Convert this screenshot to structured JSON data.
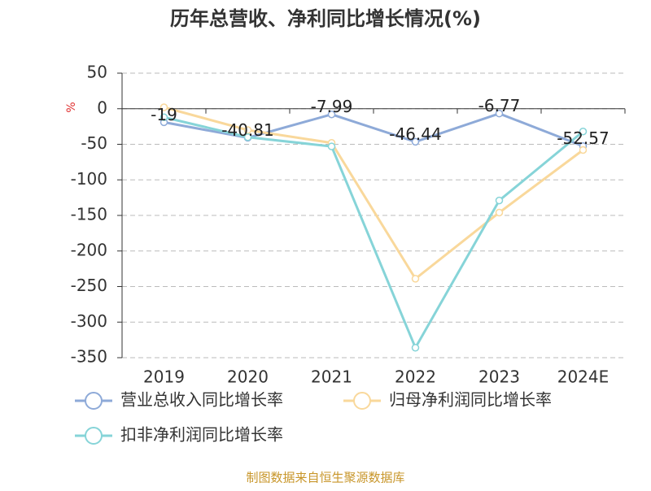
{
  "chart_data": {
    "type": "line",
    "title": "历年总营收、净利同比增长情况(%)",
    "y_label": "%",
    "categories": [
      "2019",
      "2020",
      "2021",
      "2022",
      "2023",
      "2024E"
    ],
    "series": [
      {
        "name": "营业总收入同比增长率",
        "color": "#8eaad8",
        "values": [
          -19,
          -40.81,
          -7.99,
          -46.44,
          -6.77,
          -52.57
        ]
      },
      {
        "name": "归母净利润同比增长率",
        "color": "#f9d89b",
        "values": [
          2,
          -30,
          -48,
          -239,
          -146,
          -58
        ]
      },
      {
        "name": "扣非净利润同比增长率",
        "color": "#86d4d8",
        "values": [
          -12,
          -40,
          -53,
          -336,
          -129,
          -32
        ]
      }
    ],
    "ylim": [
      -350,
      50
    ],
    "yticks": [
      50,
      0,
      -50,
      -100,
      -150,
      -200,
      -250,
      -300,
      -350
    ],
    "grid": true,
    "source": "制图数据来自恒生聚源数据库"
  }
}
